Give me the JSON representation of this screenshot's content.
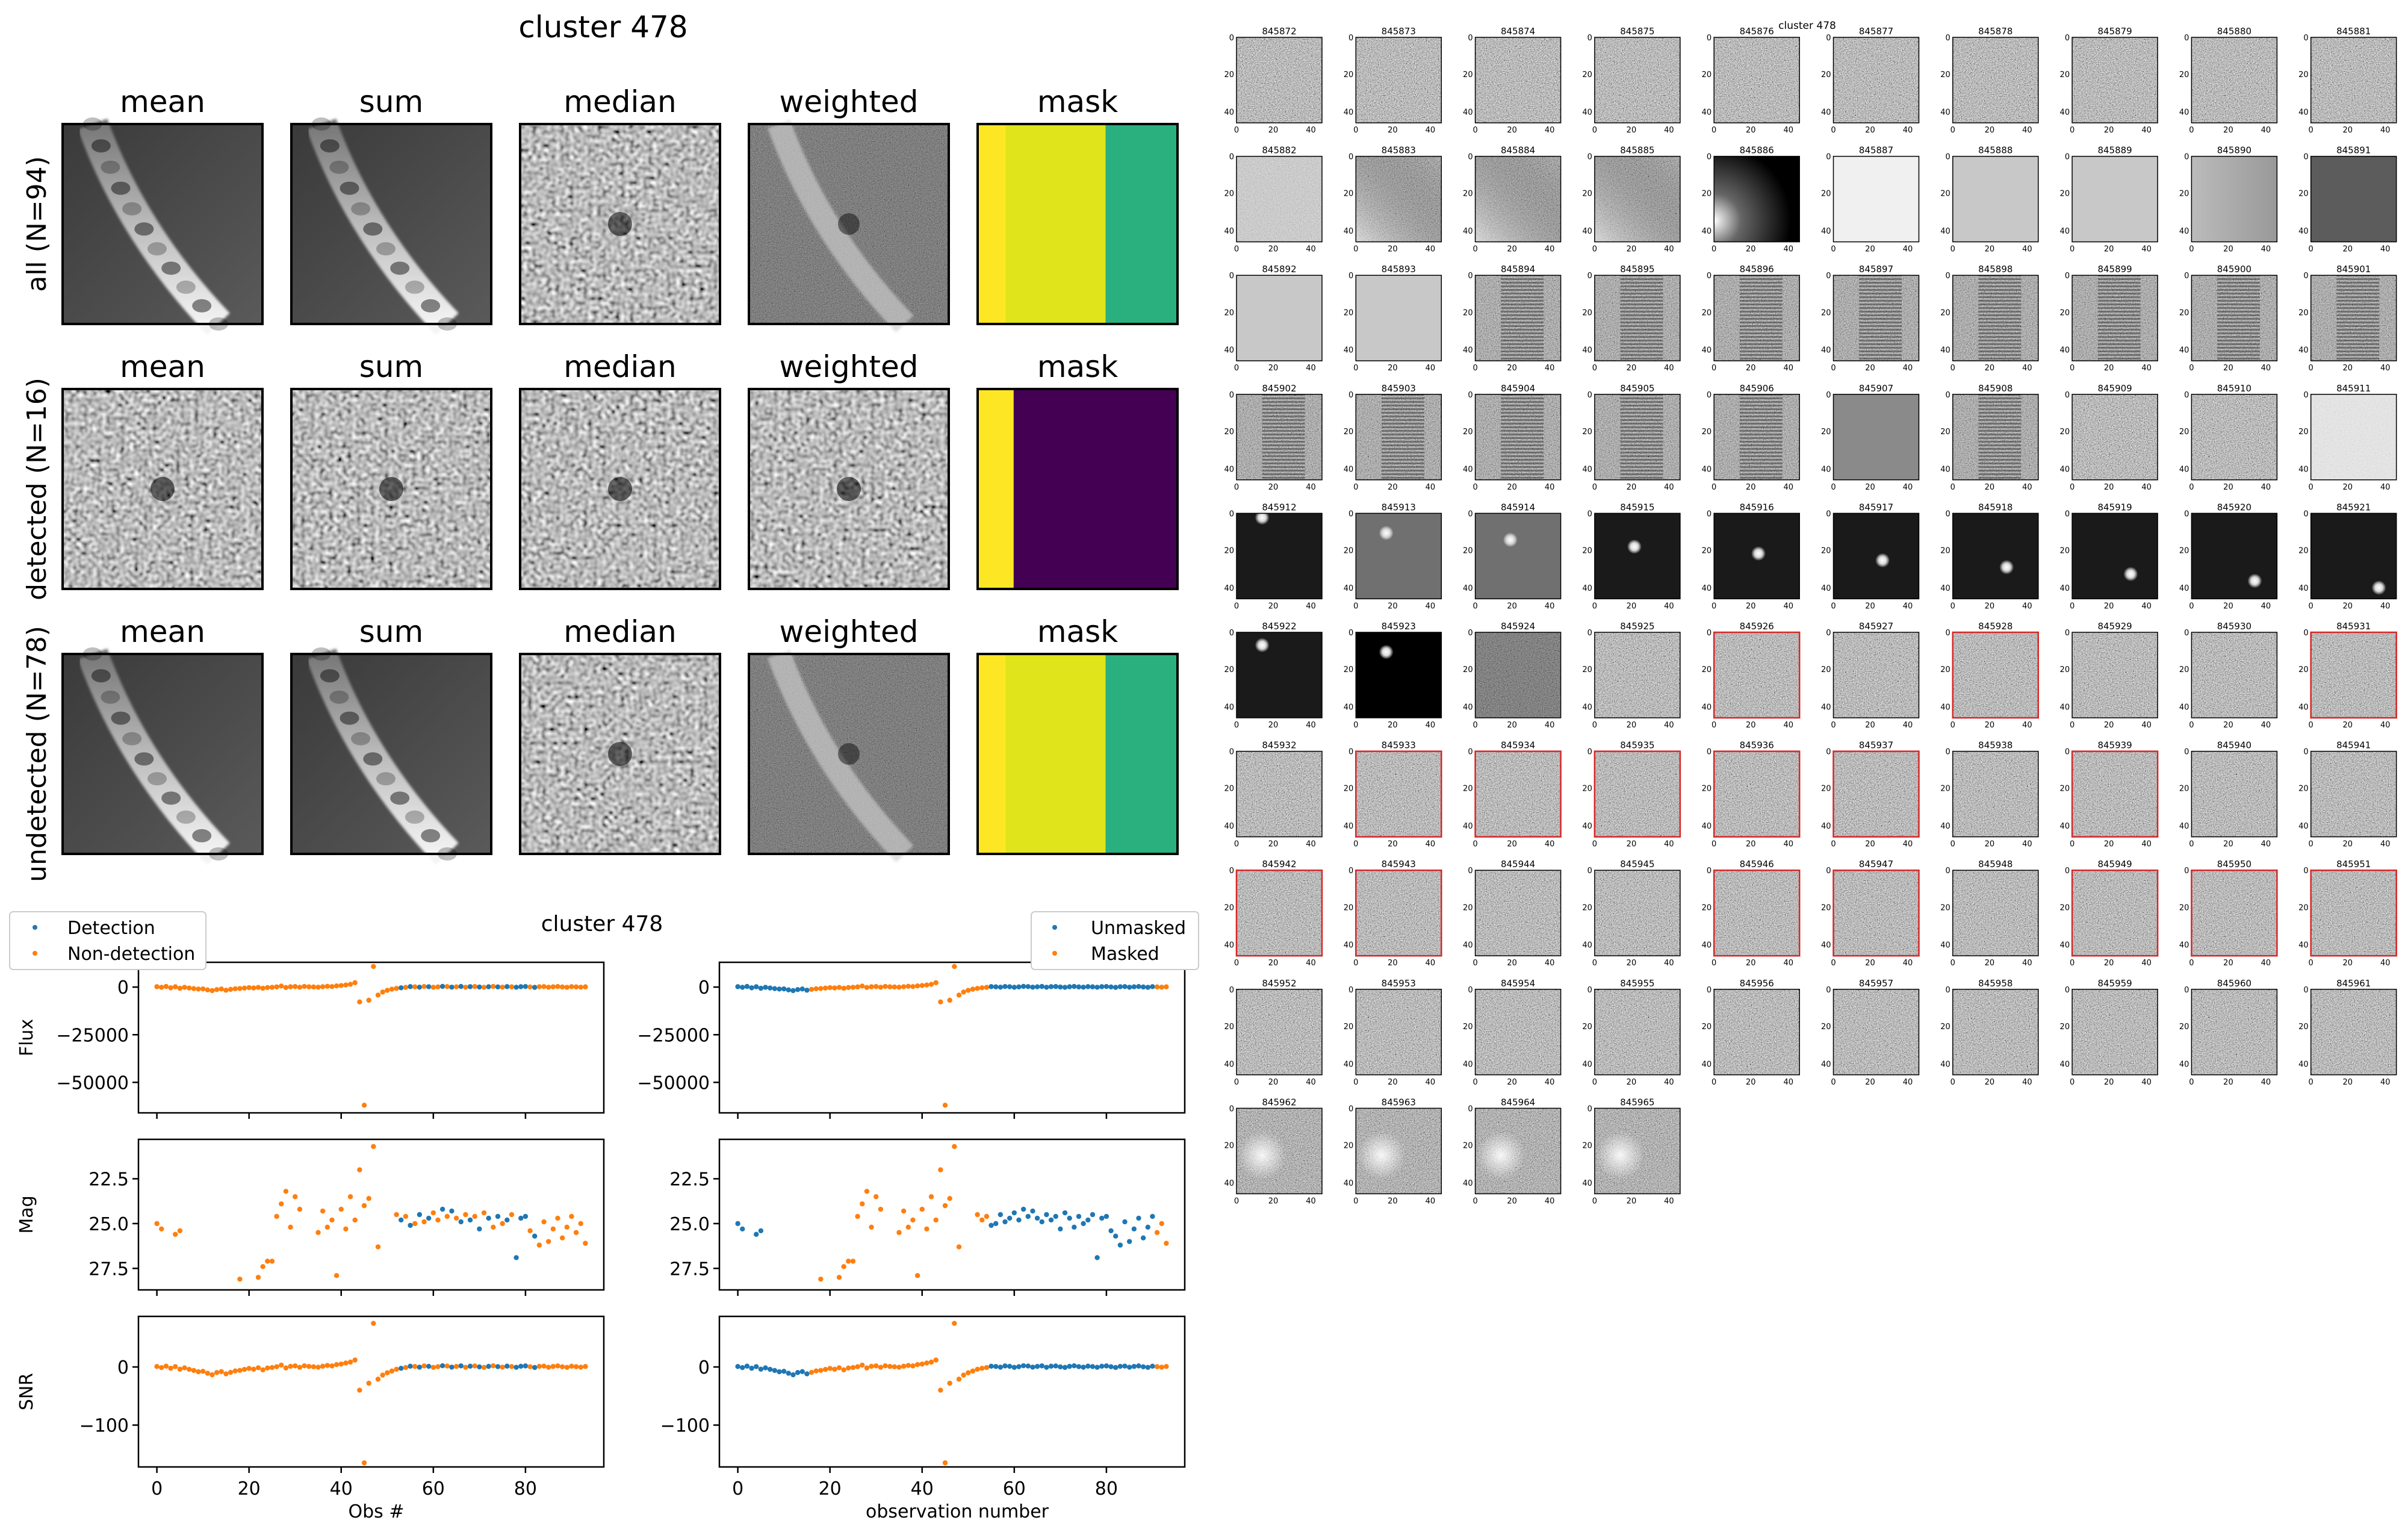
{
  "colors": {
    "blue": "#1f77b4",
    "orange": "#ff7f0e",
    "mask_yellow": "#fde725",
    "mask_lime": "#e0e41a",
    "mask_green": "#2ab07f",
    "mask_purple": "#440154",
    "cutout_red": "#d62728"
  },
  "stack_panel": {
    "title": "cluster 478",
    "columns": [
      "mean",
      "sum",
      "median",
      "weighted",
      "mask"
    ],
    "rows": [
      {
        "label": "all (N=94)",
        "kind": "streak",
        "mask": [
          "mask_yellow",
          "mask_lime",
          "mask_green"
        ],
        "mask_split": [
          0.14,
          0.64
        ]
      },
      {
        "label": "detected (N=16)",
        "kind": "point",
        "mask": [
          "mask_yellow",
          "mask_purple"
        ],
        "mask_split": [
          0.18
        ]
      },
      {
        "label": "undetected (N=78)",
        "kind": "streak",
        "mask": [
          "mask_yellow",
          "mask_lime",
          "mask_green"
        ],
        "mask_split": [
          0.14,
          0.64
        ]
      }
    ]
  },
  "chart_data": [
    {
      "type": "scatter",
      "title": "cluster 478",
      "xlabel": "Obs #",
      "ylabels": [
        "Flux",
        "Mag",
        "SNR"
      ],
      "xlim": [
        -4,
        97
      ],
      "xticks": [
        0,
        20,
        40,
        60,
        80
      ],
      "panels": [
        {
          "ylabel": "Flux",
          "ylim": [
            -66000,
            13000
          ],
          "yticks": [
            0,
            -25000,
            -50000
          ],
          "ytick_labels": [
            "0",
            "−25000",
            "−50000"
          ]
        },
        {
          "ylabel": "Mag",
          "ylim": [
            28.7,
            20.3
          ],
          "yticks": [
            22.5,
            25.0,
            27.5
          ],
          "ytick_labels": [
            "22.5",
            "25.0",
            "27.5"
          ]
        },
        {
          "ylabel": "SNR",
          "ylim": [
            -172,
            87
          ],
          "yticks": [
            0,
            -100
          ],
          "ytick_labels": [
            "0",
            "−100"
          ]
        }
      ],
      "legend": {
        "placement": "upper-left",
        "entries": [
          "Detection",
          "Non-detection"
        ]
      },
      "series": [
        {
          "name": "Detection",
          "color": "blue",
          "x": [
            53,
            55,
            57,
            59,
            62,
            64,
            66,
            68,
            70,
            72,
            74,
            76,
            78,
            79,
            80,
            82
          ]
        },
        {
          "name": "Non-detection",
          "color": "orange"
        }
      ]
    },
    {
      "type": "scatter",
      "xlabel": "observation number",
      "xlim": [
        -4,
        97
      ],
      "xticks": [
        0,
        20,
        40,
        60,
        80
      ],
      "legend": {
        "placement": "upper-right",
        "entries": [
          "Unmasked",
          "Masked"
        ]
      },
      "series": [
        {
          "name": "Unmasked",
          "color": "blue",
          "x": [
            0,
            1,
            2,
            3,
            4,
            5,
            6,
            7,
            8,
            9,
            10,
            11,
            12,
            13,
            14,
            15,
            55,
            56,
            57,
            58,
            59,
            60,
            61,
            62,
            63,
            64,
            65,
            66,
            67,
            68,
            69,
            70,
            71,
            72,
            73,
            74,
            75,
            76,
            77,
            78,
            79,
            80,
            81,
            82,
            83,
            84,
            85,
            86,
            87,
            88,
            89,
            90
          ]
        },
        {
          "name": "Masked",
          "color": "orange"
        }
      ],
      "observations": [
        {
          "obs": 0,
          "flux": 210,
          "mag": 25.0,
          "snr": 0.8
        },
        {
          "obs": 1,
          "flux": -140,
          "mag": 25.3,
          "snr": -1.1
        },
        {
          "obs": 2,
          "flux": 320,
          "mag": null,
          "snr": 1.4
        },
        {
          "obs": 3,
          "flux": -390,
          "mag": null,
          "snr": -2.2
        },
        {
          "obs": 4,
          "flux": 160,
          "mag": 25.6,
          "snr": 0.6
        },
        {
          "obs": 5,
          "flux": -620,
          "mag": 25.4,
          "snr": -3.8
        },
        {
          "obs": 6,
          "flux": -120,
          "mag": null,
          "snr": -1.5
        },
        {
          "obs": 7,
          "flux": -480,
          "mag": null,
          "snr": -4.1
        },
        {
          "obs": 8,
          "flux": -800,
          "mag": null,
          "snr": -6.0
        },
        {
          "obs": 9,
          "flux": -1050,
          "mag": null,
          "snr": -8.2
        },
        {
          "obs": 10,
          "flux": -950,
          "mag": null,
          "snr": -7.5
        },
        {
          "obs": 11,
          "flux": -1480,
          "mag": null,
          "snr": -10.8
        },
        {
          "obs": 12,
          "flux": -1850,
          "mag": null,
          "snr": -13.4
        },
        {
          "obs": 13,
          "flux": -1320,
          "mag": null,
          "snr": -9.6
        },
        {
          "obs": 14,
          "flux": -1000,
          "mag": null,
          "snr": -8.0
        },
        {
          "obs": 15,
          "flux": -1650,
          "mag": null,
          "snr": -11.9
        },
        {
          "obs": 16,
          "flux": -1200,
          "mag": null,
          "snr": -9.3
        },
        {
          "obs": 17,
          "flux": -880,
          "mag": null,
          "snr": -6.8
        },
        {
          "obs": 18,
          "flux": -760,
          "mag": 28.1,
          "snr": -5.9
        },
        {
          "obs": 19,
          "flux": -520,
          "mag": null,
          "snr": -4.2
        },
        {
          "obs": 20,
          "flux": -300,
          "mag": null,
          "snr": -2.5
        },
        {
          "obs": 21,
          "flux": -460,
          "mag": null,
          "snr": -3.9
        },
        {
          "obs": 22,
          "flux": -180,
          "mag": 28.0,
          "snr": -1.4
        },
        {
          "obs": 23,
          "flux": -620,
          "mag": 27.4,
          "snr": -5.0
        },
        {
          "obs": 24,
          "flux": -240,
          "mag": 27.1,
          "snr": -1.8
        },
        {
          "obs": 25,
          "flux": -120,
          "mag": 27.1,
          "snr": -1.0
        },
        {
          "obs": 26,
          "flux": 80,
          "mag": 24.6,
          "snr": 0.4
        },
        {
          "obs": 27,
          "flux": 540,
          "mag": 23.9,
          "snr": 3.2
        },
        {
          "obs": 28,
          "flux": -220,
          "mag": 23.2,
          "snr": -1.7
        },
        {
          "obs": 29,
          "flux": 160,
          "mag": 25.2,
          "snr": 1.1
        },
        {
          "obs": 30,
          "flux": 280,
          "mag": 23.5,
          "snr": 1.9
        },
        {
          "obs": 31,
          "flux": -90,
          "mag": 24.2,
          "snr": -0.6
        },
        {
          "obs": 32,
          "flux": 350,
          "mag": null,
          "snr": 2.0
        },
        {
          "obs": 33,
          "flux": 130,
          "mag": null,
          "snr": 0.9
        },
        {
          "obs": 34,
          "flux": 60,
          "mag": null,
          "snr": 0.3
        },
        {
          "obs": 35,
          "flux": -70,
          "mag": 25.5,
          "snr": -0.5
        },
        {
          "obs": 36,
          "flux": 190,
          "mag": 24.3,
          "snr": 1.3
        },
        {
          "obs": 37,
          "flux": 420,
          "mag": 25.2,
          "snr": 2.6
        },
        {
          "obs": 38,
          "flux": 260,
          "mag": 24.8,
          "snr": 1.8
        },
        {
          "obs": 39,
          "flux": 610,
          "mag": 27.9,
          "snr": 4.1
        },
        {
          "obs": 40,
          "flux": 820,
          "mag": 24.2,
          "snr": 5.0
        },
        {
          "obs": 41,
          "flux": 1100,
          "mag": 25.3,
          "snr": 6.8
        },
        {
          "obs": 42,
          "flux": 1450,
          "mag": 23.5,
          "snr": 8.4
        },
        {
          "obs": 43,
          "flux": 2300,
          "mag": 24.8,
          "snr": 11.9
        },
        {
          "obs": 44,
          "flux": -7800,
          "mag": 22.0,
          "snr": -40.0
        },
        {
          "obs": 45,
          "flux": -62000,
          "mag": 24.0,
          "snr": -165.0
        },
        {
          "obs": 46,
          "flux": -6900,
          "mag": 23.6,
          "snr": -28.0
        },
        {
          "obs": 47,
          "flux": 10800,
          "mag": 20.7,
          "snr": 75.0
        },
        {
          "obs": 48,
          "flux": -4200,
          "mag": 26.3,
          "snr": -21.0
        },
        {
          "obs": 49,
          "flux": -2600,
          "mag": null,
          "snr": -14.0
        },
        {
          "obs": 50,
          "flux": -1700,
          "mag": null,
          "snr": -10.0
        },
        {
          "obs": 51,
          "flux": -1100,
          "mag": null,
          "snr": -7.0
        },
        {
          "obs": 52,
          "flux": -700,
          "mag": 24.5,
          "snr": -4.0
        },
        {
          "obs": 53,
          "flux": -380,
          "mag": 24.8,
          "snr": -2.3
        },
        {
          "obs": 54,
          "flux": -150,
          "mag": 24.6,
          "snr": -1.0
        },
        {
          "obs": 55,
          "flux": 240,
          "mag": 25.1,
          "snr": 1.3
        },
        {
          "obs": 56,
          "flux": 120,
          "mag": 25.0,
          "snr": 0.8
        },
        {
          "obs": 57,
          "flux": -60,
          "mag": 24.5,
          "snr": -0.4
        },
        {
          "obs": 58,
          "flux": 300,
          "mag": 24.9,
          "snr": 1.8
        },
        {
          "obs": 59,
          "flux": 180,
          "mag": 24.7,
          "snr": 1.1
        },
        {
          "obs": 60,
          "flux": -110,
          "mag": 24.4,
          "snr": -0.7
        },
        {
          "obs": 61,
          "flux": 90,
          "mag": 24.8,
          "snr": 0.5
        },
        {
          "obs": 62,
          "flux": 360,
          "mag": 24.2,
          "snr": 2.1
        },
        {
          "obs": 63,
          "flux": 260,
          "mag": 24.6,
          "snr": 1.6
        },
        {
          "obs": 64,
          "flux": -40,
          "mag": 24.3,
          "snr": -0.3
        },
        {
          "obs": 65,
          "flux": 150,
          "mag": 24.7,
          "snr": 0.9
        },
        {
          "obs": 66,
          "flux": 320,
          "mag": 24.9,
          "snr": 1.9
        },
        {
          "obs": 67,
          "flux": -90,
          "mag": 24.5,
          "snr": -0.6
        },
        {
          "obs": 68,
          "flux": 210,
          "mag": 24.8,
          "snr": 1.3
        },
        {
          "obs": 69,
          "flux": 280,
          "mag": 24.6,
          "snr": 1.7
        },
        {
          "obs": 70,
          "flux": 40,
          "mag": 25.3,
          "snr": 0.2
        },
        {
          "obs": 71,
          "flux": -130,
          "mag": 24.4,
          "snr": -0.8
        },
        {
          "obs": 72,
          "flux": 170,
          "mag": 24.7,
          "snr": 1.0
        },
        {
          "obs": 73,
          "flux": 330,
          "mag": 25.2,
          "snr": 2.0
        },
        {
          "obs": 74,
          "flux": 90,
          "mag": 24.6,
          "snr": 0.6
        },
        {
          "obs": 75,
          "flux": -60,
          "mag": 25.0,
          "snr": -0.4
        },
        {
          "obs": 76,
          "flux": 240,
          "mag": 24.8,
          "snr": 1.4
        },
        {
          "obs": 77,
          "flux": 120,
          "mag": 24.5,
          "snr": 0.7
        },
        {
          "obs": 78,
          "flux": -100,
          "mag": 26.9,
          "snr": -0.6
        },
        {
          "obs": 79,
          "flux": 200,
          "mag": 24.7,
          "snr": 1.2
        },
        {
          "obs": 80,
          "flux": 310,
          "mag": 24.6,
          "snr": 1.8
        },
        {
          "obs": 81,
          "flux": 70,
          "mag": 25.4,
          "snr": 0.4
        },
        {
          "obs": 82,
          "flux": -150,
          "mag": 25.7,
          "snr": -0.9
        },
        {
          "obs": 83,
          "flux": 180,
          "mag": 26.2,
          "snr": 1.1
        },
        {
          "obs": 84,
          "flux": 260,
          "mag": 24.9,
          "snr": 1.5
        },
        {
          "obs": 85,
          "flux": -80,
          "mag": 26.0,
          "snr": -0.5
        },
        {
          "obs": 86,
          "flux": 150,
          "mag": 25.3,
          "snr": 0.9
        },
        {
          "obs": 87,
          "flux": 300,
          "mag": 24.7,
          "snr": 1.8
        },
        {
          "obs": 88,
          "flux": 50,
          "mag": 25.8,
          "snr": 0.3
        },
        {
          "obs": 89,
          "flux": -120,
          "mag": 25.2,
          "snr": -0.7
        },
        {
          "obs": 90,
          "flux": 220,
          "mag": 24.6,
          "snr": 1.3
        },
        {
          "obs": 91,
          "flux": 90,
          "mag": 25.5,
          "snr": 0.5
        },
        {
          "obs": 92,
          "flux": -60,
          "mag": 25.0,
          "snr": -0.4
        },
        {
          "obs": 93,
          "flux": 130,
          "mag": 26.1,
          "snr": 0.8
        }
      ]
    }
  ],
  "cutouts": {
    "title": "cluster 478",
    "axis_ticks": [
      "0",
      "20",
      "40"
    ],
    "ids": [
      "845872",
      "845873",
      "845874",
      "845875",
      "845876",
      "845877",
      "845878",
      "845879",
      "845880",
      "845881",
      "845882",
      "845883",
      "845884",
      "845885",
      "845886",
      "845887",
      "845888",
      "845889",
      "845890",
      "845891",
      "845892",
      "845893",
      "845894",
      "845895",
      "845896",
      "845897",
      "845898",
      "845899",
      "845900",
      "845901",
      "845902",
      "845903",
      "845904",
      "845905",
      "845906",
      "845907",
      "845908",
      "845909",
      "845910",
      "845911",
      "845912",
      "845913",
      "845914",
      "845915",
      "845916",
      "845917",
      "845918",
      "845919",
      "845920",
      "845921",
      "845922",
      "845923",
      "845924",
      "845925",
      "845926",
      "845927",
      "845928",
      "845929",
      "845930",
      "845931",
      "845932",
      "845933",
      "845934",
      "845935",
      "845936",
      "845937",
      "845938",
      "845939",
      "845940",
      "845941",
      "845942",
      "845943",
      "845944",
      "845945",
      "845946",
      "845947",
      "845948",
      "845949",
      "845950",
      "845951",
      "845952",
      "845953",
      "845954",
      "845955",
      "845956",
      "845957",
      "845958",
      "845959",
      "845960",
      "845961",
      "845962",
      "845963",
      "845964",
      "845965"
    ],
    "red_frames": [
      "845926",
      "845928",
      "845931",
      "845933",
      "845934",
      "845935",
      "845936",
      "845937",
      "845939",
      "845942",
      "845943",
      "845946",
      "845947",
      "845949",
      "845950",
      "845951"
    ],
    "tile_styles": {
      "845886": "dark-left-glow",
      "845887": "white-flat",
      "845888": "light-flat",
      "845889": "light-flat",
      "845890": "light-gradient",
      "845891": "gray-dark",
      "845882": "light-noise",
      "845883": "noise-gradient",
      "845884": "noise-gradient",
      "845885": "noise-gradient",
      "845892": "light-flat",
      "845893": "light-flat",
      "845907": "gray-flat",
      "845911": "white-noise",
      "845912": "dark-point-top",
      "845913": "gray-point",
      "845914": "gray-point",
      "845915": "dark-point",
      "845916": "dark-point",
      "845917": "dark-point",
      "845918": "dark-point",
      "845919": "dark-point",
      "845920": "dark-point",
      "845921": "dark-point",
      "845922": "dark-point",
      "845923": "black-point",
      "845924": "dark-noise",
      "845894": "striped",
      "845895": "striped",
      "845896": "striped",
      "845897": "striped",
      "845898": "striped",
      "845899": "striped",
      "845900": "striped",
      "845901": "striped",
      "845902": "striped",
      "845903": "striped",
      "845904": "striped",
      "845905": "striped",
      "845906": "striped",
      "845908": "striped",
      "845962": "glow",
      "845963": "glow",
      "845964": "glow",
      "845965": "glow"
    }
  }
}
